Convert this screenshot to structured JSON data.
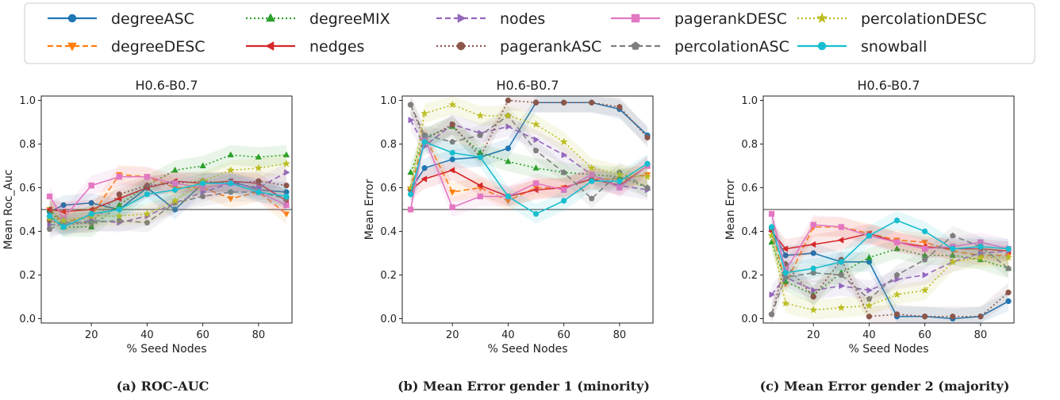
{
  "legend": {
    "items": [
      {
        "name": "degreeASC",
        "color": "#1f77b4",
        "dash": "solid",
        "marker": "circle"
      },
      {
        "name": "degreeDESC",
        "color": "#ff7f0e",
        "dash": "dashed",
        "marker": "triangle-down"
      },
      {
        "name": "degreeMIX",
        "color": "#2ca02c",
        "dash": "dotted",
        "marker": "triangle-up"
      },
      {
        "name": "nedges",
        "color": "#d62728",
        "dash": "solid",
        "marker": "triangle-left"
      },
      {
        "name": "nodes",
        "color": "#9467bd",
        "dash": "dashed",
        "marker": "triangle-right"
      },
      {
        "name": "pagerankASC",
        "color": "#8c564b",
        "dash": "dotted",
        "marker": "circle"
      },
      {
        "name": "pagerankDESC",
        "color": "#e377c2",
        "dash": "solid",
        "marker": "square"
      },
      {
        "name": "percolationASC",
        "color": "#7f7f7f",
        "dash": "dashed",
        "marker": "pentagon"
      },
      {
        "name": "percolationDESC",
        "color": "#bcbd22",
        "dash": "dotted",
        "marker": "star"
      },
      {
        "name": "snowball",
        "color": "#17becf",
        "dash": "solid",
        "marker": "circle"
      }
    ]
  },
  "chart_data": [
    {
      "type": "line",
      "title": "H0.6-B0.7",
      "xlabel": "% Seed Nodes",
      "ylabel": "Mean Roc_Auc",
      "caption": "(a) ROC-AUC",
      "x": [
        5,
        10,
        20,
        30,
        40,
        50,
        60,
        70,
        80,
        90
      ],
      "xticks": [
        20,
        40,
        60,
        80
      ],
      "yticks": [
        0.0,
        0.2,
        0.4,
        0.6,
        0.8,
        1.0
      ],
      "ytick_labels": [
        "0.0",
        "0.2",
        "0.4",
        "0.6",
        "0.8",
        "1.0"
      ],
      "xlim": [
        2,
        92
      ],
      "ylim": [
        -0.02,
        1.02
      ],
      "reference_line": 0.5,
      "series": [
        {
          "name": "degreeASC",
          "values": [
            0.49,
            0.52,
            0.53,
            0.5,
            0.6,
            0.5,
            0.62,
            0.63,
            0.59,
            0.58
          ]
        },
        {
          "name": "degreeDESC",
          "values": [
            0.5,
            0.44,
            0.47,
            0.66,
            0.65,
            0.6,
            0.6,
            0.55,
            0.58,
            0.48
          ]
        },
        {
          "name": "degreeMIX",
          "values": [
            0.5,
            0.42,
            0.42,
            0.52,
            0.61,
            0.68,
            0.7,
            0.75,
            0.74,
            0.75
          ]
        },
        {
          "name": "nedges",
          "values": [
            0.5,
            0.49,
            0.5,
            0.55,
            0.6,
            0.63,
            0.62,
            0.63,
            0.62,
            0.54
          ]
        },
        {
          "name": "nodes",
          "values": [
            0.43,
            0.43,
            0.45,
            0.44,
            0.47,
            0.53,
            0.58,
            0.62,
            0.6,
            0.67
          ]
        },
        {
          "name": "pagerankASC",
          "values": [
            0.45,
            0.43,
            0.44,
            0.57,
            0.61,
            0.62,
            0.63,
            0.62,
            0.63,
            0.61
          ]
        },
        {
          "name": "pagerankDESC",
          "values": [
            0.56,
            0.46,
            0.61,
            0.65,
            0.65,
            0.62,
            0.6,
            0.62,
            0.58,
            0.52
          ]
        },
        {
          "name": "percolationASC",
          "values": [
            0.41,
            0.44,
            0.44,
            0.45,
            0.44,
            0.53,
            0.56,
            0.58,
            0.58,
            0.55
          ]
        },
        {
          "name": "percolationDESC",
          "values": [
            0.46,
            0.45,
            0.47,
            0.47,
            0.48,
            0.54,
            0.63,
            0.68,
            0.69,
            0.71
          ]
        },
        {
          "name": "snowball",
          "values": [
            0.47,
            0.42,
            0.48,
            0.5,
            0.57,
            0.59,
            0.62,
            0.62,
            0.58,
            0.56
          ]
        }
      ]
    },
    {
      "type": "line",
      "title": "H0.6-B0.7",
      "xlabel": "% Seed Nodes",
      "ylabel": "Mean Error",
      "caption": "(b) Mean Error gender 1 (minority)",
      "x": [
        5,
        10,
        20,
        30,
        40,
        50,
        60,
        70,
        80,
        90
      ],
      "xticks": [
        20,
        40,
        60,
        80
      ],
      "yticks": [
        0.0,
        0.2,
        0.4,
        0.6,
        0.8,
        1.0
      ],
      "ytick_labels": [
        "0.0",
        "0.2",
        "0.4",
        "0.6",
        "0.8",
        "1.0"
      ],
      "xlim": [
        2,
        92
      ],
      "ylim": [
        -0.02,
        1.02
      ],
      "reference_line": 0.5,
      "series": [
        {
          "name": "degreeASC",
          "values": [
            0.59,
            0.69,
            0.73,
            0.74,
            0.78,
            0.99,
            0.99,
            0.99,
            0.96,
            0.84
          ]
        },
        {
          "name": "degreeDESC",
          "values": [
            0.59,
            0.84,
            0.58,
            0.6,
            0.54,
            0.6,
            0.6,
            0.64,
            0.64,
            0.66
          ]
        },
        {
          "name": "degreeMIX",
          "values": [
            0.67,
            0.83,
            0.88,
            0.76,
            0.72,
            0.69,
            0.67,
            0.66,
            0.65,
            0.6
          ]
        },
        {
          "name": "nedges",
          "values": [
            0.59,
            0.64,
            0.68,
            0.61,
            0.56,
            0.59,
            0.6,
            0.64,
            0.61,
            0.7
          ]
        },
        {
          "name": "nodes",
          "values": [
            0.91,
            0.79,
            0.89,
            0.85,
            0.88,
            0.82,
            0.75,
            0.66,
            0.61,
            0.59
          ]
        },
        {
          "name": "pagerankASC",
          "values": [
            0.98,
            0.82,
            0.89,
            0.74,
            1.0,
            0.99,
            0.99,
            0.99,
            0.97,
            0.83
          ]
        },
        {
          "name": "pagerankDESC",
          "values": [
            0.5,
            0.83,
            0.51,
            0.56,
            0.56,
            0.62,
            0.59,
            0.66,
            0.6,
            0.7
          ]
        },
        {
          "name": "percolationASC",
          "values": [
            0.98,
            0.84,
            0.81,
            0.84,
            0.93,
            0.77,
            0.67,
            0.55,
            0.67,
            0.6
          ]
        },
        {
          "name": "percolationDESC",
          "values": [
            0.6,
            0.94,
            0.98,
            0.93,
            0.93,
            0.89,
            0.81,
            0.69,
            0.66,
            0.65
          ]
        },
        {
          "name": "snowball",
          "values": [
            0.57,
            0.81,
            0.76,
            0.74,
            0.56,
            0.48,
            0.54,
            0.63,
            0.63,
            0.71
          ]
        }
      ]
    },
    {
      "type": "line",
      "title": "H0.6-B0.7",
      "xlabel": "% Seed Nodes",
      "ylabel": "Mean Error",
      "caption": "(c) Mean Error gender 2 (majority)",
      "x": [
        5,
        10,
        20,
        30,
        40,
        50,
        60,
        70,
        80,
        90
      ],
      "xticks": [
        20,
        40,
        60,
        80
      ],
      "yticks": [
        0.0,
        0.2,
        0.4,
        0.6,
        0.8,
        1.0
      ],
      "ytick_labels": [
        "0.0",
        "0.2",
        "0.4",
        "0.6",
        "0.8",
        "1.0"
      ],
      "xlim": [
        2,
        92
      ],
      "ylim": [
        -0.02,
        1.02
      ],
      "reference_line": 0.5,
      "series": [
        {
          "name": "degreeASC",
          "values": [
            0.41,
            0.29,
            0.3,
            0.26,
            0.26,
            0.01,
            0.01,
            0.0,
            0.01,
            0.08
          ]
        },
        {
          "name": "degreeDESC",
          "values": [
            0.41,
            0.16,
            0.42,
            0.42,
            0.39,
            0.36,
            0.35,
            0.31,
            0.29,
            0.29
          ]
        },
        {
          "name": "degreeMIX",
          "values": [
            0.35,
            0.17,
            0.11,
            0.21,
            0.28,
            0.32,
            0.29,
            0.29,
            0.27,
            0.23
          ]
        },
        {
          "name": "nedges",
          "values": [
            0.4,
            0.32,
            0.34,
            0.36,
            0.39,
            0.35,
            0.33,
            0.32,
            0.32,
            0.31
          ]
        },
        {
          "name": "nodes",
          "values": [
            0.11,
            0.19,
            0.13,
            0.15,
            0.13,
            0.18,
            0.2,
            0.26,
            0.3,
            0.31
          ]
        },
        {
          "name": "pagerankASC",
          "values": [
            0.02,
            0.25,
            0.1,
            0.27,
            0.01,
            0.02,
            0.01,
            0.01,
            0.01,
            0.12
          ]
        },
        {
          "name": "pagerankDESC",
          "values": [
            0.48,
            0.22,
            0.43,
            0.42,
            0.38,
            0.35,
            0.32,
            0.33,
            0.35,
            0.32
          ]
        },
        {
          "name": "percolationASC",
          "values": [
            0.02,
            0.19,
            0.21,
            0.2,
            0.09,
            0.2,
            0.27,
            0.38,
            0.33,
            0.23
          ]
        },
        {
          "name": "percolationDESC",
          "values": [
            0.38,
            0.07,
            0.04,
            0.05,
            0.06,
            0.11,
            0.13,
            0.26,
            0.28,
            0.28
          ]
        },
        {
          "name": "snowball",
          "values": [
            0.42,
            0.21,
            0.23,
            0.26,
            0.38,
            0.45,
            0.4,
            0.32,
            0.33,
            0.32
          ]
        }
      ]
    }
  ]
}
